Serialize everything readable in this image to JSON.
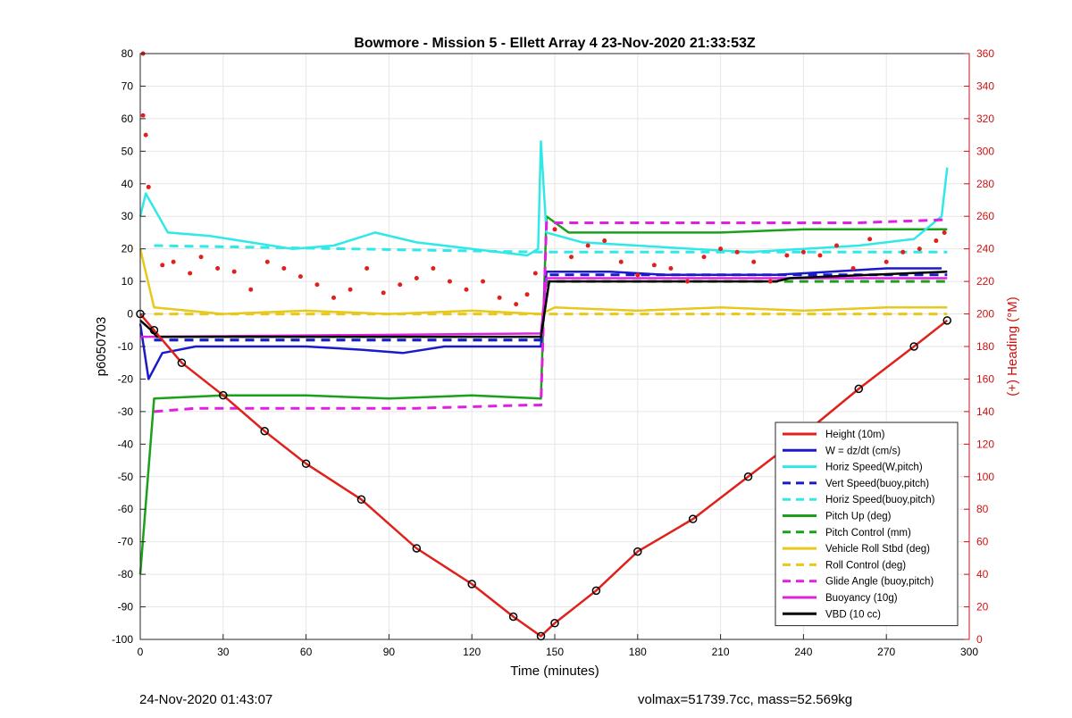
{
  "chart_data": {
    "type": "line",
    "title": "Bowmore - Mission 5 - Ellett Array 4 23-Nov-2020 21:33:53Z",
    "xlabel": "Time (minutes)",
    "ylabel": "p6050703",
    "ylabel_right": "(+) Heading (°M)",
    "xlim": [
      0,
      300
    ],
    "ylim": [
      -100,
      80
    ],
    "ylim_right": [
      0,
      360
    ],
    "xticks": [
      0,
      30,
      60,
      90,
      120,
      150,
      180,
      210,
      240,
      270,
      300
    ],
    "yticks": [
      -100,
      -90,
      -80,
      -70,
      -60,
      -50,
      -40,
      -30,
      -20,
      -10,
      0,
      10,
      20,
      30,
      40,
      50,
      60,
      70,
      80
    ],
    "yticks_right": [
      0,
      20,
      40,
      60,
      80,
      100,
      120,
      140,
      160,
      180,
      200,
      220,
      240,
      260,
      280,
      300,
      320,
      340,
      360
    ],
    "grid": true,
    "legend_position": "bottom-right",
    "colors": {
      "red": "#e0201a",
      "blue": "#1a1acc",
      "cyan": "#30e8e8",
      "green": "#1aa01a",
      "yellow": "#e8c81a",
      "magenta": "#e020e0",
      "black": "#000000",
      "heading_axis": "#d01010"
    },
    "series": [
      {
        "name": "Height (10m)",
        "color": "#e0201a",
        "style": "solid",
        "x": [
          0,
          5,
          15,
          30,
          45,
          60,
          80,
          100,
          120,
          135,
          145,
          150,
          165,
          180,
          200,
          220,
          240,
          260,
          280,
          292
        ],
        "y": [
          0,
          -5,
          -15,
          -25,
          -36,
          -46,
          -57,
          -72,
          -83,
          -93,
          -99,
          -95,
          -85,
          -73,
          -63,
          -50,
          -37,
          -23,
          -10,
          -2
        ]
      },
      {
        "name": "W = dz/dt (cm/s)",
        "color": "#1a1acc",
        "style": "solid",
        "x": [
          0,
          3,
          8,
          20,
          40,
          60,
          80,
          95,
          110,
          130,
          145,
          147,
          150,
          170,
          190,
          210,
          230,
          250,
          270,
          290
        ],
        "y": [
          -3,
          -20,
          -12,
          -10,
          -10,
          -10,
          -11,
          -12,
          -10,
          -10,
          -10,
          13,
          13,
          13,
          12,
          12,
          12,
          13,
          14,
          14
        ]
      },
      {
        "name": "Horiz Speed(W,pitch)",
        "color": "#30e8e8",
        "style": "solid",
        "x": [
          0,
          2,
          10,
          25,
          40,
          55,
          70,
          85,
          100,
          120,
          140,
          144,
          145,
          147,
          160,
          180,
          200,
          220,
          240,
          260,
          280,
          290,
          292
        ],
        "y": [
          30,
          37,
          25,
          24,
          22,
          20,
          21,
          25,
          22,
          20,
          18,
          20,
          53,
          25,
          22,
          21,
          20,
          19,
          20,
          21,
          23,
          30,
          45
        ]
      },
      {
        "name": "Vert Speed(buoy,pitch)",
        "color": "#1a1acc",
        "style": "dashed",
        "x": [
          5,
          145,
          147,
          292
        ],
        "y": [
          -8,
          -8,
          12,
          12
        ]
      },
      {
        "name": "Horiz Speed(buoy,pitch)",
        "color": "#30e8e8",
        "style": "dashed",
        "x": [
          5,
          145,
          147,
          292
        ],
        "y": [
          21,
          19,
          19,
          19
        ]
      },
      {
        "name": "Pitch Up (deg)",
        "color": "#1aa01a",
        "style": "solid",
        "x": [
          0,
          5,
          30,
          60,
          90,
          120,
          145,
          147,
          155,
          180,
          210,
          240,
          270,
          292
        ],
        "y": [
          -80,
          -26,
          -25,
          -25,
          -26,
          -25,
          -26,
          30,
          25,
          25,
          25,
          26,
          26,
          26
        ]
      },
      {
        "name": "Pitch Control (mm)",
        "color": "#1aa01a",
        "style": "dashed",
        "x": [
          5,
          145,
          147,
          292
        ],
        "y": [
          -8,
          -8,
          10,
          10
        ]
      },
      {
        "name": "Vehicle Roll Stbd (deg)",
        "color": "#e8c81a",
        "style": "solid",
        "x": [
          0,
          5,
          30,
          60,
          90,
          120,
          145,
          150,
          180,
          210,
          240,
          270,
          292
        ],
        "y": [
          20,
          2,
          0,
          1,
          0,
          1,
          0,
          2,
          1,
          2,
          1,
          2,
          2
        ]
      },
      {
        "name": "Roll Control (deg)",
        "color": "#e8c81a",
        "style": "dashed",
        "x": [
          5,
          145,
          150,
          292
        ],
        "y": [
          0,
          0,
          0,
          0
        ]
      },
      {
        "name": "Glide Angle (buoy,pitch)",
        "color": "#e020e0",
        "style": "dashed",
        "x": [
          5,
          20,
          60,
          100,
          140,
          145,
          147,
          180,
          220,
          260,
          292
        ],
        "y": [
          -30,
          -29,
          -29,
          -29,
          -28,
          -28,
          28,
          28,
          28,
          28,
          29
        ]
      },
      {
        "name": "Buoyancy (10g)",
        "color": "#e020e0",
        "style": "solid",
        "x": [
          0,
          5,
          145,
          147,
          292
        ],
        "y": [
          -7,
          -7,
          -6,
          11,
          11
        ]
      },
      {
        "name": "VBD (10 cc)",
        "color": "#000000",
        "style": "solid",
        "x": [
          0,
          4,
          6,
          145,
          148,
          230,
          235,
          292
        ],
        "y": [
          -2,
          -5,
          -7,
          -7,
          10,
          10,
          11,
          13
        ]
      }
    ],
    "heading_points": {
      "name": "Heading",
      "color": "#e0201a",
      "x": [
        1,
        1,
        2,
        3,
        8,
        12,
        18,
        22,
        28,
        34,
        40,
        46,
        52,
        58,
        64,
        70,
        76,
        82,
        88,
        94,
        100,
        106,
        112,
        118,
        124,
        130,
        136,
        140,
        143,
        150,
        156,
        162,
        168,
        174,
        180,
        186,
        192,
        198,
        204,
        210,
        216,
        222,
        228,
        234,
        240,
        246,
        252,
        258,
        264,
        270,
        276,
        282,
        288,
        291
      ],
      "y": [
        360,
        322,
        310,
        278,
        230,
        232,
        225,
        235,
        228,
        226,
        215,
        232,
        228,
        223,
        218,
        210,
        215,
        228,
        213,
        218,
        222,
        228,
        220,
        215,
        220,
        210,
        206,
        212,
        225,
        252,
        235,
        242,
        245,
        232,
        224,
        230,
        228,
        220,
        235,
        240,
        238,
        232,
        220,
        236,
        238,
        236,
        242,
        228,
        246,
        232,
        238,
        240,
        245,
        250
      ]
    },
    "legend": [
      "Height (10m)",
      "W = dz/dt (cm/s)",
      "Horiz Speed(W,pitch)",
      "Vert Speed(buoy,pitch)",
      "Horiz Speed(buoy,pitch)",
      "Pitch Up (deg)",
      "Pitch Control (mm)",
      "Vehicle Roll Stbd (deg)",
      "Roll Control (deg)",
      "Glide Angle (buoy,pitch)",
      "Buoyancy (10g)",
      "VBD (10 cc)"
    ]
  },
  "footer": {
    "left": "24-Nov-2020 01:43:07",
    "right": "volmax=51739.7cc, mass=52.569kg"
  }
}
